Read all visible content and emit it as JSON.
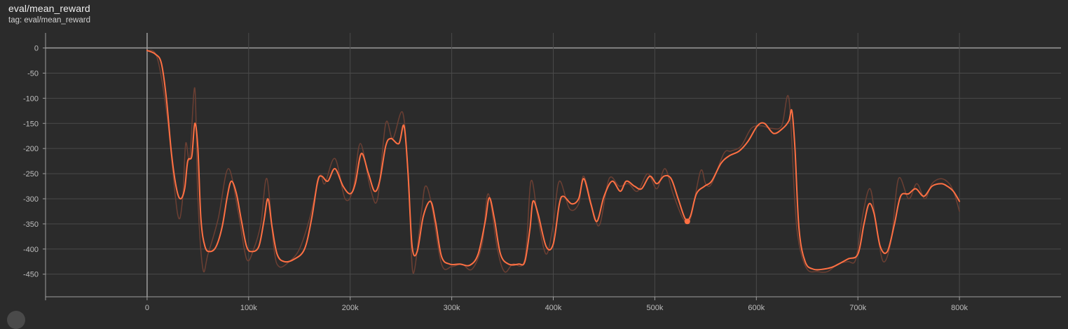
{
  "card": {
    "title": "eval/mean_reward",
    "tag": "tag: eval/mean_reward"
  },
  "colors": {
    "background": "#2b2b2b",
    "smoothed": "#ff7043",
    "raw": "#6b3f33",
    "grid": "#4a4a4a",
    "axis": "#9e9e9e"
  },
  "chart_data": {
    "type": "line",
    "xlim": [
      -100000,
      900000
    ],
    "ylim": [
      -495,
      30
    ],
    "grid": true,
    "x_ticks": [
      0,
      100000,
      200000,
      300000,
      400000,
      500000,
      600000,
      700000,
      800000
    ],
    "x_tick_labels": [
      "0",
      "100k",
      "200k",
      "300k",
      "400k",
      "500k",
      "600k",
      "700k",
      "800k"
    ],
    "y_ticks": [
      0,
      -50,
      -100,
      -150,
      -200,
      -250,
      -300,
      -350,
      -400,
      -450
    ],
    "y_tick_labels": [
      "0",
      "-50",
      "-100",
      "-150",
      "-200",
      "-250",
      "-300",
      "-350",
      "-400",
      "-450"
    ],
    "highlight_point": {
      "x": 532000,
      "y": -345
    },
    "series": [
      {
        "role": "raw",
        "points": [
          [
            0,
            -5
          ],
          [
            10000,
            -20
          ],
          [
            20000,
            -140
          ],
          [
            30000,
            -330
          ],
          [
            35000,
            -300
          ],
          [
            38000,
            -190
          ],
          [
            42000,
            -220
          ],
          [
            47000,
            -80
          ],
          [
            50000,
            -300
          ],
          [
            55000,
            -440
          ],
          [
            60000,
            -410
          ],
          [
            70000,
            -340
          ],
          [
            80000,
            -240
          ],
          [
            90000,
            -330
          ],
          [
            98000,
            -420
          ],
          [
            105000,
            -400
          ],
          [
            112000,
            -350
          ],
          [
            118000,
            -260
          ],
          [
            125000,
            -400
          ],
          [
            130000,
            -435
          ],
          [
            140000,
            -425
          ],
          [
            150000,
            -400
          ],
          [
            160000,
            -340
          ],
          [
            170000,
            -255
          ],
          [
            175000,
            -270
          ],
          [
            185000,
            -220
          ],
          [
            195000,
            -300
          ],
          [
            203000,
            -280
          ],
          [
            210000,
            -190
          ],
          [
            220000,
            -280
          ],
          [
            227000,
            -300
          ],
          [
            235000,
            -150
          ],
          [
            242000,
            -180
          ],
          [
            252000,
            -130
          ],
          [
            258000,
            -290
          ],
          [
            262000,
            -448
          ],
          [
            270000,
            -330
          ],
          [
            274000,
            -275
          ],
          [
            280000,
            -310
          ],
          [
            290000,
            -430
          ],
          [
            300000,
            -435
          ],
          [
            310000,
            -430
          ],
          [
            320000,
            -440
          ],
          [
            330000,
            -390
          ],
          [
            336000,
            -290
          ],
          [
            345000,
            -400
          ],
          [
            352000,
            -445
          ],
          [
            360000,
            -430
          ],
          [
            372000,
            -420
          ],
          [
            378000,
            -265
          ],
          [
            385000,
            -340
          ],
          [
            393000,
            -410
          ],
          [
            400000,
            -350
          ],
          [
            406000,
            -265
          ],
          [
            416000,
            -320
          ],
          [
            425000,
            -310
          ],
          [
            430000,
            -255
          ],
          [
            440000,
            -330
          ],
          [
            446000,
            -350
          ],
          [
            455000,
            -260
          ],
          [
            465000,
            -275
          ],
          [
            474000,
            -270
          ],
          [
            483000,
            -285
          ],
          [
            493000,
            -250
          ],
          [
            502000,
            -280
          ],
          [
            510000,
            -240
          ],
          [
            518000,
            -290
          ],
          [
            528000,
            -340
          ],
          [
            535000,
            -340
          ],
          [
            545000,
            -245
          ],
          [
            550000,
            -270
          ],
          [
            556000,
            -270
          ],
          [
            568000,
            -210
          ],
          [
            575000,
            -205
          ],
          [
            585000,
            -195
          ],
          [
            595000,
            -160
          ],
          [
            605000,
            -155
          ],
          [
            615000,
            -160
          ],
          [
            625000,
            -155
          ],
          [
            632000,
            -100
          ],
          [
            638000,
            -310
          ],
          [
            642000,
            -390
          ],
          [
            650000,
            -440
          ],
          [
            660000,
            -445
          ],
          [
            670000,
            -445
          ],
          [
            680000,
            -430
          ],
          [
            690000,
            -425
          ],
          [
            698000,
            -420
          ],
          [
            705000,
            -330
          ],
          [
            712000,
            -280
          ],
          [
            718000,
            -350
          ],
          [
            725000,
            -425
          ],
          [
            733000,
            -380
          ],
          [
            740000,
            -260
          ],
          [
            750000,
            -300
          ],
          [
            758000,
            -270
          ],
          [
            766000,
            -300
          ],
          [
            773000,
            -270
          ],
          [
            782000,
            -260
          ],
          [
            790000,
            -270
          ],
          [
            795000,
            -290
          ],
          [
            800000,
            -325
          ]
        ]
      },
      {
        "role": "smoothed",
        "points": [
          [
            0,
            -5
          ],
          [
            8000,
            -12
          ],
          [
            14000,
            -30
          ],
          [
            19000,
            -100
          ],
          [
            24000,
            -210
          ],
          [
            29000,
            -280
          ],
          [
            33000,
            -300
          ],
          [
            37000,
            -280
          ],
          [
            40000,
            -225
          ],
          [
            44000,
            -215
          ],
          [
            47000,
            -150
          ],
          [
            50000,
            -200
          ],
          [
            53000,
            -340
          ],
          [
            57000,
            -395
          ],
          [
            62000,
            -405
          ],
          [
            68000,
            -395
          ],
          [
            74000,
            -355
          ],
          [
            79000,
            -295
          ],
          [
            83000,
            -265
          ],
          [
            88000,
            -290
          ],
          [
            93000,
            -345
          ],
          [
            98000,
            -395
          ],
          [
            103000,
            -405
          ],
          [
            110000,
            -395
          ],
          [
            115000,
            -345
          ],
          [
            119000,
            -300
          ],
          [
            123000,
            -355
          ],
          [
            128000,
            -410
          ],
          [
            135000,
            -425
          ],
          [
            145000,
            -420
          ],
          [
            155000,
            -400
          ],
          [
            162000,
            -340
          ],
          [
            168000,
            -265
          ],
          [
            172000,
            -255
          ],
          [
            178000,
            -265
          ],
          [
            185000,
            -240
          ],
          [
            193000,
            -275
          ],
          [
            200000,
            -290
          ],
          [
            205000,
            -270
          ],
          [
            211000,
            -210
          ],
          [
            218000,
            -250
          ],
          [
            224000,
            -285
          ],
          [
            229000,
            -265
          ],
          [
            235000,
            -195
          ],
          [
            240000,
            -180
          ],
          [
            248000,
            -190
          ],
          [
            253000,
            -155
          ],
          [
            257000,
            -250
          ],
          [
            261000,
            -395
          ],
          [
            266000,
            -405
          ],
          [
            272000,
            -335
          ],
          [
            279000,
            -305
          ],
          [
            284000,
            -345
          ],
          [
            290000,
            -415
          ],
          [
            298000,
            -430
          ],
          [
            308000,
            -430
          ],
          [
            318000,
            -432
          ],
          [
            326000,
            -410
          ],
          [
            333000,
            -345
          ],
          [
            337000,
            -298
          ],
          [
            342000,
            -340
          ],
          [
            348000,
            -410
          ],
          [
            356000,
            -430
          ],
          [
            366000,
            -430
          ],
          [
            372000,
            -425
          ],
          [
            377000,
            -360
          ],
          [
            380000,
            -305
          ],
          [
            385000,
            -330
          ],
          [
            393000,
            -395
          ],
          [
            400000,
            -390
          ],
          [
            406000,
            -310
          ],
          [
            410000,
            -295
          ],
          [
            418000,
            -310
          ],
          [
            425000,
            -300
          ],
          [
            430000,
            -260
          ],
          [
            437000,
            -310
          ],
          [
            443000,
            -345
          ],
          [
            450000,
            -295
          ],
          [
            458000,
            -265
          ],
          [
            466000,
            -285
          ],
          [
            472000,
            -265
          ],
          [
            480000,
            -275
          ],
          [
            487000,
            -280
          ],
          [
            495000,
            -255
          ],
          [
            502000,
            -270
          ],
          [
            509000,
            -255
          ],
          [
            516000,
            -260
          ],
          [
            523000,
            -300
          ],
          [
            530000,
            -340
          ],
          [
            535000,
            -335
          ],
          [
            541000,
            -290
          ],
          [
            549000,
            -275
          ],
          [
            556000,
            -265
          ],
          [
            565000,
            -230
          ],
          [
            573000,
            -215
          ],
          [
            583000,
            -205
          ],
          [
            592000,
            -185
          ],
          [
            601000,
            -155
          ],
          [
            608000,
            -150
          ],
          [
            617000,
            -170
          ],
          [
            626000,
            -160
          ],
          [
            632000,
            -145
          ],
          [
            635000,
            -125
          ],
          [
            638000,
            -200
          ],
          [
            642000,
            -360
          ],
          [
            648000,
            -425
          ],
          [
            656000,
            -440
          ],
          [
            666000,
            -440
          ],
          [
            676000,
            -435
          ],
          [
            690000,
            -420
          ],
          [
            700000,
            -410
          ],
          [
            706000,
            -350
          ],
          [
            711000,
            -310
          ],
          [
            716000,
            -330
          ],
          [
            722000,
            -395
          ],
          [
            729000,
            -405
          ],
          [
            736000,
            -350
          ],
          [
            742000,
            -295
          ],
          [
            750000,
            -290
          ],
          [
            757000,
            -280
          ],
          [
            765000,
            -295
          ],
          [
            773000,
            -275
          ],
          [
            782000,
            -270
          ],
          [
            788000,
            -275
          ],
          [
            794000,
            -285
          ],
          [
            800000,
            -305
          ]
        ]
      }
    ]
  }
}
